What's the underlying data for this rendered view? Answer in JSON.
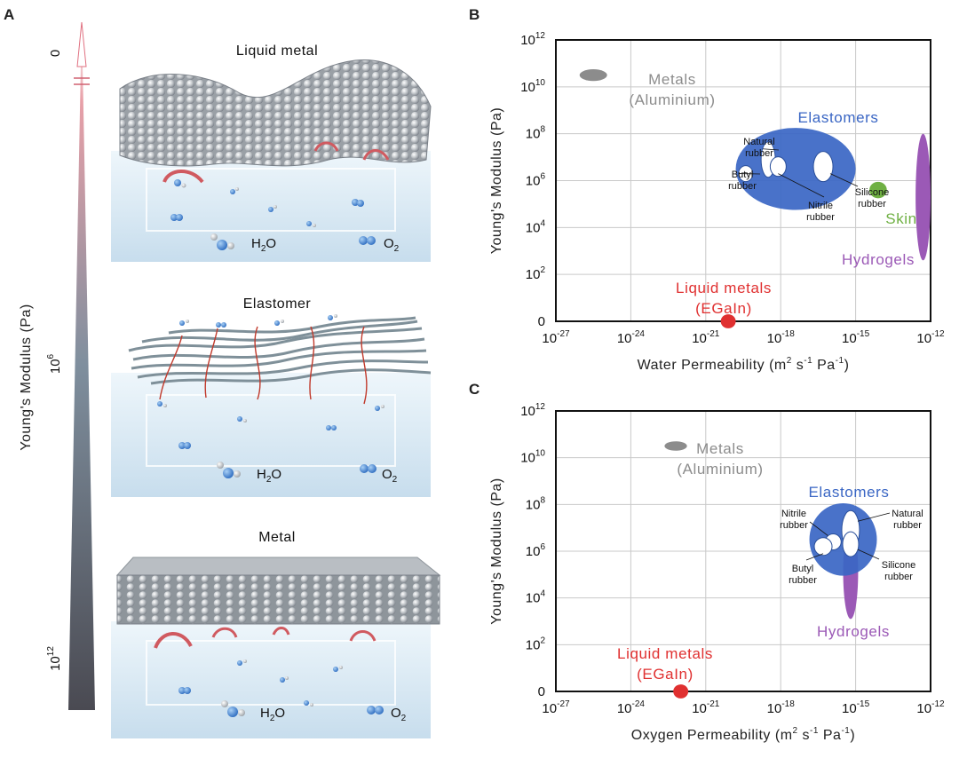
{
  "panels": {
    "a": {
      "letter": "A",
      "scale_title": "Young's Modulus (Pa)",
      "scale_ticks": [
        {
          "base": "0",
          "exp": ""
        },
        {
          "base": "10",
          "exp": "6"
        },
        {
          "base": "10",
          "exp": "12"
        }
      ],
      "scenes": [
        {
          "title": "Liquid metal",
          "h2o_base": "H",
          "h2o_sub": "2",
          "h2o_rest": "O",
          "o2_base": "O",
          "o2_sub": "2"
        },
        {
          "title": "Elastomer",
          "h2o_base": "H",
          "h2o_sub": "2",
          "h2o_rest": "O",
          "o2_base": "O",
          "o2_sub": "2"
        },
        {
          "title": "Metal",
          "h2o_base": "H",
          "h2o_sub": "2",
          "h2o_rest": "O",
          "o2_base": "O",
          "o2_sub": "2"
        }
      ]
    },
    "b": {
      "letter": "B"
    },
    "c": {
      "letter": "C"
    }
  },
  "chart_data": [
    {
      "type": "scatter",
      "panel": "B",
      "xlabel": {
        "text": "Water Permeability (m",
        "unit_exps": [
          "2",
          "-1",
          "-1"
        ],
        "unit_parts": [
          "s",
          "Pa",
          ")"
        ]
      },
      "ylabel": "Young's Modulus (Pa)",
      "x_scale": "log",
      "y_scale": "log",
      "xlim_exp": [
        -27,
        -12
      ],
      "ylim_exp": [
        0,
        12
      ],
      "x_ticks": [
        {
          "base": "10",
          "exp": "-27"
        },
        {
          "base": "10",
          "exp": "-24"
        },
        {
          "base": "10",
          "exp": "-21"
        },
        {
          "base": "10",
          "exp": "-18"
        },
        {
          "base": "10",
          "exp": "-15"
        },
        {
          "base": "10",
          "exp": "-12"
        }
      ],
      "y_ticks": [
        {
          "base": "0",
          "exp": "",
          "at": 0
        },
        {
          "base": "10",
          "exp": "2",
          "at": 2
        },
        {
          "base": "10",
          "exp": "4",
          "at": 4
        },
        {
          "base": "10",
          "exp": "6",
          "at": 6
        },
        {
          "base": "10",
          "exp": "8",
          "at": 8
        },
        {
          "base": "10",
          "exp": "10",
          "at": 10
        },
        {
          "base": "10",
          "exp": "12",
          "at": 12
        }
      ],
      "grid": true,
      "groups": [
        {
          "name": "Metals",
          "sub": "(Aluminium)",
          "color": "#8c8c8c",
          "x_exp": -25.5,
          "y_exp": 10.5,
          "rx_dec": 0.55,
          "ry_dec": 0.25
        },
        {
          "name": "Elastomers",
          "color": "#3a66c4",
          "x_exp": -17.4,
          "y_exp": 6.5,
          "rx_dec": 2.4,
          "ry_dec": 1.75
        },
        {
          "name": "Skin",
          "color": "#6fb043",
          "x_exp": -14.1,
          "y_exp": 5.6,
          "rx_dec": 0.35,
          "ry_dec": 0.35
        },
        {
          "name": "Hydrogels",
          "color": "#9b59b6",
          "x_exp": -12.3,
          "y_exp": 5.3,
          "rx_dec": 0.3,
          "ry_dec": 2.7
        },
        {
          "name": "Liquid metals",
          "sub": "(EGaIn)",
          "color": "#e03030",
          "x_exp": -20.1,
          "y_exp": 0,
          "rx_dec": 0.3,
          "ry_dec": 0.3
        }
      ],
      "subgroups": [
        {
          "name": "Natural",
          "name2": "rubber",
          "x_exp": -18.5,
          "y_exp": 6.9
        },
        {
          "name": "Butyl",
          "name2": "rubber",
          "x_exp": -19.4,
          "y_exp": 6.3
        },
        {
          "name": "Nitrile",
          "name2": "rubber",
          "x_exp": -18.1,
          "y_exp": 6.6
        },
        {
          "name": "Silicone",
          "name2": "rubber",
          "x_exp": -16.3,
          "y_exp": 6.6
        }
      ]
    },
    {
      "type": "scatter",
      "panel": "C",
      "xlabel": {
        "text": "Oxygen Permeability (m",
        "unit_exps": [
          "2",
          "-1",
          "-1"
        ],
        "unit_parts": [
          "s",
          "Pa",
          ")"
        ]
      },
      "ylabel": "Young's Modulus (Pa)",
      "x_scale": "log",
      "y_scale": "log",
      "xlim_exp": [
        -27,
        -12
      ],
      "ylim_exp": [
        0,
        12
      ],
      "x_ticks": [
        {
          "base": "10",
          "exp": "-27"
        },
        {
          "base": "10",
          "exp": "-24"
        },
        {
          "base": "10",
          "exp": "-21"
        },
        {
          "base": "10",
          "exp": "-18"
        },
        {
          "base": "10",
          "exp": "-15"
        },
        {
          "base": "10",
          "exp": "-12"
        }
      ],
      "y_ticks": [
        {
          "base": "0",
          "exp": "",
          "at": 0
        },
        {
          "base": "10",
          "exp": "2",
          "at": 2
        },
        {
          "base": "10",
          "exp": "4",
          "at": 4
        },
        {
          "base": "10",
          "exp": "6",
          "at": 6
        },
        {
          "base": "10",
          "exp": "8",
          "at": 8
        },
        {
          "base": "10",
          "exp": "10",
          "at": 10
        },
        {
          "base": "10",
          "exp": "12",
          "at": 12
        }
      ],
      "grid": true,
      "groups": [
        {
          "name": "Metals",
          "sub": "(Aluminium)",
          "color": "#8c8c8c",
          "x_exp": -22.2,
          "y_exp": 10.5,
          "rx_dec": 0.45,
          "ry_dec": 0.2
        },
        {
          "name": "Hydrogels",
          "color": "#9b59b6",
          "x_exp": -15.2,
          "y_exp": 5.1,
          "rx_dec": 0.3,
          "ry_dec": 2.0
        },
        {
          "name": "Elastomers",
          "color": "#3a66c4",
          "x_exp": -15.5,
          "y_exp": 6.5,
          "rx_dec": 1.35,
          "ry_dec": 1.55
        },
        {
          "name": "Liquid metals",
          "sub": "(EGaIn)",
          "color": "#e03030",
          "x_exp": -22.0,
          "y_exp": 0,
          "rx_dec": 0.3,
          "ry_dec": 0.3
        }
      ],
      "subgroups": [
        {
          "name": "Nitrile",
          "name2": "rubber",
          "x_exp": -15.9,
          "y_exp": 6.4
        },
        {
          "name": "Natural",
          "name2": "rubber",
          "x_exp": -15.2,
          "y_exp": 6.9
        },
        {
          "name": "Butyl",
          "name2": "rubber",
          "x_exp": -16.3,
          "y_exp": 6.2
        },
        {
          "name": "Silicone",
          "name2": "rubber",
          "x_exp": -15.2,
          "y_exp": 6.3
        }
      ]
    }
  ]
}
